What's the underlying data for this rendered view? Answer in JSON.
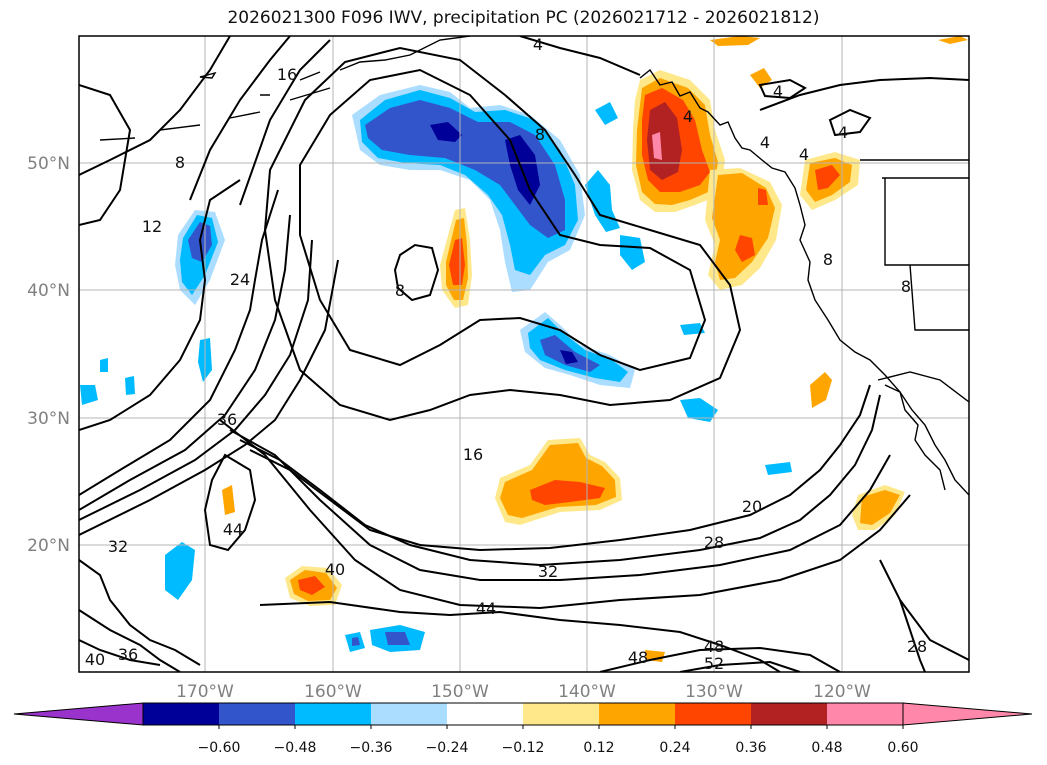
{
  "title": "2026021300 F096 IWV, precipitation PC (2026021712 - 2026021812)",
  "map": {
    "lat_labels": [
      "50°N",
      "40°N",
      "30°N",
      "20°N"
    ],
    "lon_labels": [
      "170°W",
      "160°W",
      "150°W",
      "140°W",
      "130°W",
      "120°W"
    ],
    "iwv_contour_labels": [
      "4",
      "4",
      "4",
      "4",
      "4",
      "4",
      "8",
      "8",
      "8",
      "8",
      "8",
      "12",
      "16",
      "16",
      "20",
      "24",
      "28",
      "28",
      "32",
      "32",
      "36",
      "36",
      "40",
      "40",
      "44",
      "44",
      "48",
      "48",
      "52"
    ],
    "colors": {
      "coast": "#000000",
      "grid": "#b4b4b4",
      "neg": [
        "#9933cc",
        "#000099",
        "#3355cc",
        "#00bbff",
        "#aaddff"
      ],
      "pos": [
        "#ffe88a",
        "#ffa500",
        "#ff4500",
        "#b22222",
        "#ff88aa"
      ]
    }
  },
  "colorbar": {
    "ticks": [
      "−0.60",
      "−0.48",
      "−0.36",
      "−0.24",
      "−0.12",
      "0.12",
      "0.24",
      "0.36",
      "0.48",
      "0.60"
    ],
    "colors": [
      "#9933cc",
      "#000099",
      "#3355cc",
      "#00bbff",
      "#aaddff",
      "#ffffff",
      "#ffe88a",
      "#ffa500",
      "#ff4500",
      "#b22222",
      "#ff88aa",
      "#ff88aa"
    ]
  }
}
